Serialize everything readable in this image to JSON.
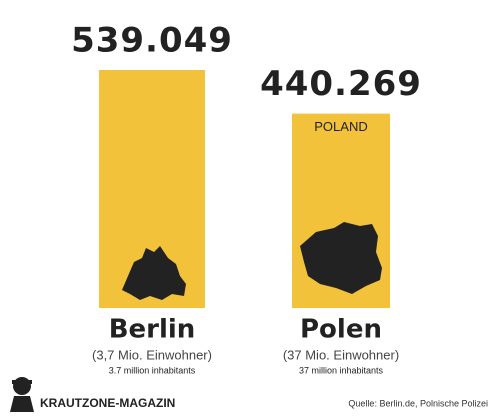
{
  "chart_data": {
    "type": "bar",
    "categories": [
      "Berlin",
      "Polen"
    ],
    "values": [
      539049,
      440269
    ],
    "value_labels": [
      "539.049",
      "440.269"
    ],
    "bar_labels": [
      null,
      "POLAND"
    ],
    "population_labels": [
      "(3,7 Mio. Einwohner)",
      "(37 Mio. Einwohner)"
    ],
    "population_labels_en": [
      "3.7 million inhabitants",
      "37 million inhabitants"
    ],
    "color": "#f2c23a"
  },
  "footer": {
    "brand": "KRAUTZONE-MAGAZIN",
    "source": "Quelle: Berlin.de, Polnische Polizei"
  }
}
